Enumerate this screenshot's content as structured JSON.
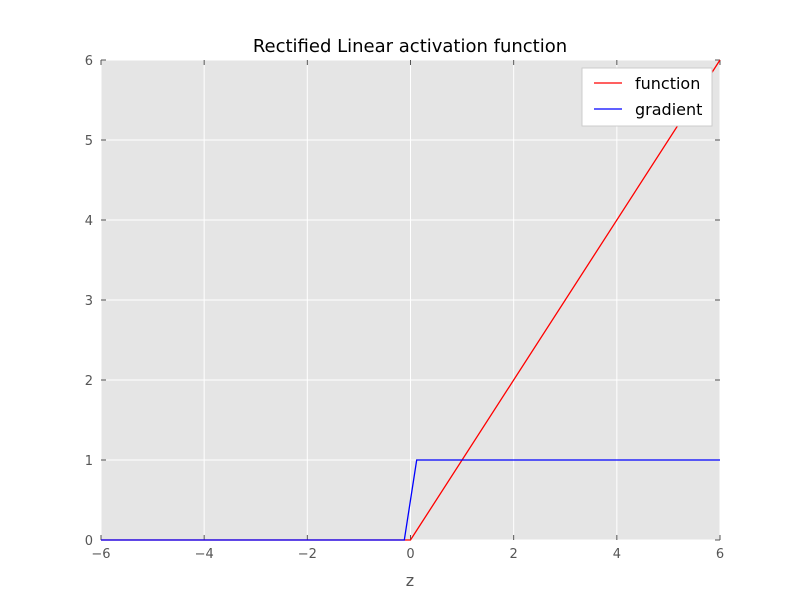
{
  "chart_data": {
    "type": "line",
    "title": "Rectified Linear activation function",
    "xlabel": "z",
    "ylabel": "",
    "xlim": [
      -6,
      6
    ],
    "ylim": [
      0,
      6
    ],
    "xticks": [
      -6,
      -4,
      -2,
      0,
      2,
      4,
      6
    ],
    "yticks": [
      0,
      1,
      2,
      3,
      4,
      5,
      6
    ],
    "xtick_labels": [
      "−6",
      "−4",
      "−2",
      "0",
      "2",
      "4",
      "6"
    ],
    "ytick_labels": [
      "0",
      "1",
      "2",
      "3",
      "4",
      "5",
      "6"
    ],
    "grid": true,
    "legend_position": "top-right",
    "series": [
      {
        "name": "function",
        "color": "#ff0000",
        "x": [
          -6,
          -0.12,
          0,
          0.12,
          6
        ],
        "y": [
          0,
          0,
          0,
          0.12,
          6
        ]
      },
      {
        "name": "gradient",
        "color": "#0000ff",
        "x": [
          -6,
          -0.12,
          0.12,
          6
        ],
        "y": [
          0,
          0,
          1,
          1
        ]
      }
    ]
  }
}
